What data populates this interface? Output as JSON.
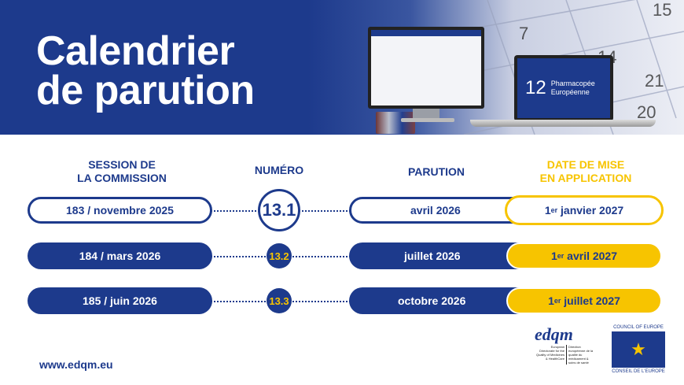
{
  "banner": {
    "title_line1": "Calendrier",
    "title_line2": "de parution",
    "laptop_number": "12",
    "laptop_text_line1": "Pharmacopée",
    "laptop_text_line2": "Européenne"
  },
  "headers": {
    "session_line1": "SESSION DE",
    "session_line2": "LA COMMISSION",
    "numero": "NUMÉRO",
    "parution": "PARUTION",
    "application_line1": "DATE DE MISE",
    "application_line2": "EN APPLICATION"
  },
  "rows": [
    {
      "session": "183 / novembre 2025",
      "numero": "13.1",
      "parution": "avril 2026",
      "application_day": "1",
      "application_sup": "er",
      "application_rest": " janvier 2027"
    },
    {
      "session": "184 / mars 2026",
      "numero": "13.2",
      "parution": "juillet 2026",
      "application_day": "1",
      "application_sup": "er",
      "application_rest": " avril 2027"
    },
    {
      "session": "185 / juin 2026",
      "numero": "13.3",
      "parution": "octobre 2026",
      "application_day": "1",
      "application_sup": "er",
      "application_rest": " juillet 2027"
    }
  ],
  "footer": {
    "url": "www.edqm.eu",
    "edqm_logo": "edqm",
    "edqm_en": "European Directorate for the Quality of Medicines & HealthCare",
    "edqm_fr": "Direction européenne de la qualité du médicament & soins de santé",
    "coe_top": "COUNCIL OF EUROPE",
    "coe_bottom": "CONSEIL DE L'EUROPE"
  },
  "colors": {
    "blue": "#1d3a8c",
    "yellow": "#f7c400"
  }
}
